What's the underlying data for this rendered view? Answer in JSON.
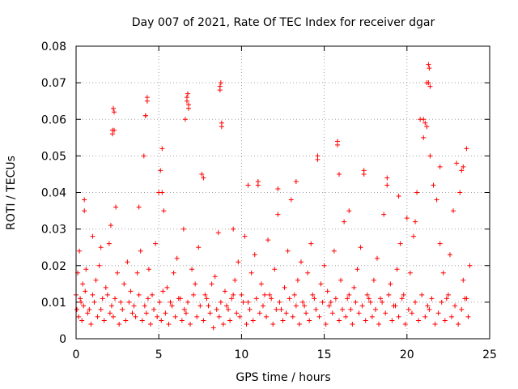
{
  "chart_data": {
    "type": "scatter",
    "title": "Day 007 of 2021, Rate Of TEC Index for receiver dgar",
    "xlabel": "GPS time / hours",
    "ylabel": "ROTI / TECUs",
    "xlim": [
      0,
      25
    ],
    "ylim": [
      0,
      0.08
    ],
    "x_ticks": [
      0,
      5,
      10,
      15,
      20,
      25
    ],
    "x_tick_labels": [
      "0",
      "5",
      "10",
      "15",
      "20",
      "25"
    ],
    "y_ticks": [
      0,
      0.01,
      0.02,
      0.03,
      0.04,
      0.05,
      0.06,
      0.07,
      0.08
    ],
    "y_tick_labels": [
      "0",
      "0.01",
      "0.02",
      "0.03",
      "0.04",
      "0.05",
      "0.06",
      "0.07",
      "0.08"
    ],
    "grid": true,
    "marker": "+",
    "color": "#ff0000",
    "series": [
      {
        "name": "ROTI",
        "x": [
          0.0,
          0.1,
          0.2,
          0.3,
          0.4,
          0.5,
          0.6,
          0.8,
          1.0,
          1.2,
          1.4,
          1.6,
          1.8,
          2.0,
          2.1,
          2.2,
          2.3,
          2.4,
          2.5,
          2.7,
          2.9,
          3.1,
          3.3,
          3.5,
          3.7,
          3.9,
          4.1,
          4.2,
          4.3,
          4.4,
          4.6,
          4.8,
          5.0,
          5.1,
          5.2,
          5.3,
          5.5,
          5.7,
          5.9,
          6.1,
          6.3,
          6.5,
          6.6,
          6.7,
          6.8,
          7.0,
          7.2,
          7.4,
          7.6,
          7.8,
          8.0,
          8.2,
          8.4,
          8.6,
          8.7,
          8.8,
          9.0,
          9.2,
          9.4,
          9.6,
          9.8,
          10.0,
          10.2,
          10.4,
          10.6,
          10.8,
          11.0,
          11.2,
          11.4,
          11.6,
          11.8,
          12.0,
          12.2,
          12.4,
          12.6,
          12.8,
          13.0,
          13.2,
          13.4,
          13.6,
          13.8,
          14.0,
          14.2,
          14.4,
          14.6,
          14.8,
          15.0,
          15.2,
          15.4,
          15.6,
          15.8,
          16.0,
          16.2,
          16.4,
          16.6,
          16.8,
          17.0,
          17.2,
          17.4,
          17.6,
          17.8,
          18.0,
          18.2,
          18.4,
          18.6,
          18.8,
          19.0,
          19.2,
          19.4,
          19.6,
          19.8,
          20.0,
          20.2,
          20.4,
          20.6,
          20.8,
          21.0,
          21.2,
          21.3,
          21.4,
          21.6,
          21.8,
          22.0,
          22.2,
          22.4,
          22.6,
          22.8,
          23.0,
          23.2,
          23.4,
          23.6,
          23.8,
          0.05,
          0.15,
          0.25,
          0.35,
          0.45,
          0.55,
          0.7,
          0.9,
          1.1,
          1.3,
          1.5,
          1.7,
          1.9,
          2.05,
          2.15,
          2.25,
          2.35,
          2.6,
          2.8,
          3.0,
          3.2,
          3.4,
          3.6,
          3.8,
          4.0,
          4.15,
          4.25,
          4.35,
          4.5,
          4.7,
          4.9,
          5.05,
          5.15,
          5.25,
          5.4,
          5.6,
          5.8,
          6.0,
          6.2,
          6.4,
          6.55,
          6.65,
          6.75,
          6.9,
          7.1,
          7.3,
          7.5,
          7.7,
          7.9,
          8.1,
          8.3,
          8.5,
          8.65,
          8.75,
          8.9,
          9.1,
          9.3,
          9.5,
          9.7,
          9.9,
          10.1,
          10.3,
          10.5,
          10.7,
          10.9,
          11.1,
          11.3,
          11.5,
          11.7,
          11.9,
          12.1,
          12.3,
          12.5,
          12.7,
          12.9,
          13.1,
          13.3,
          13.5,
          13.7,
          13.9,
          14.1,
          14.3,
          14.5,
          14.7,
          14.9,
          15.1,
          15.3,
          15.5,
          15.7,
          15.9,
          16.1,
          16.3,
          16.5,
          16.7,
          16.9,
          17.1,
          17.3,
          17.5,
          17.7,
          17.9,
          18.1,
          18.3,
          18.5,
          18.7,
          18.9,
          19.1,
          19.3,
          19.5,
          19.7,
          19.9,
          20.1,
          20.3,
          20.5,
          20.7,
          20.9,
          21.1,
          21.25,
          21.35,
          21.5,
          21.7,
          21.9,
          22.1,
          22.3,
          22.5,
          22.7,
          22.9,
          23.1,
          23.3,
          23.5,
          23.7,
          2.2,
          2.25,
          2.3,
          4.2,
          4.3,
          6.7,
          6.75,
          6.8,
          8.7,
          8.75,
          8.8,
          21.2,
          21.3,
          21.35,
          21.4,
          21.0,
          21.1,
          23.3,
          23.4,
          15.8,
          14.6,
          15.9,
          17.4,
          18.8,
          13.3,
          12.2,
          11.0,
          10.4,
          3.8,
          5.2,
          7.7,
          0.5,
          1.0,
          1.5,
          9.5,
          16.5,
          19.5,
          20.5,
          22.0,
          23.6
        ],
        "y": [
          0.012,
          0.018,
          0.024,
          0.01,
          0.015,
          0.035,
          0.019,
          0.008,
          0.012,
          0.016,
          0.02,
          0.011,
          0.014,
          0.026,
          0.031,
          0.057,
          0.062,
          0.036,
          0.018,
          0.01,
          0.015,
          0.021,
          0.013,
          0.009,
          0.018,
          0.024,
          0.05,
          0.061,
          0.065,
          0.019,
          0.012,
          0.026,
          0.04,
          0.046,
          0.052,
          0.035,
          0.014,
          0.01,
          0.018,
          0.022,
          0.011,
          0.03,
          0.06,
          0.066,
          0.064,
          0.019,
          0.015,
          0.025,
          0.045,
          0.012,
          0.009,
          0.015,
          0.017,
          0.029,
          0.068,
          0.059,
          0.013,
          0.008,
          0.011,
          0.016,
          0.021,
          0.012,
          0.028,
          0.01,
          0.018,
          0.023,
          0.042,
          0.015,
          0.012,
          0.027,
          0.011,
          0.019,
          0.034,
          0.008,
          0.014,
          0.024,
          0.038,
          0.012,
          0.016,
          0.021,
          0.009,
          0.018,
          0.026,
          0.011,
          0.049,
          0.015,
          0.02,
          0.013,
          0.01,
          0.024,
          0.053,
          0.016,
          0.032,
          0.011,
          0.008,
          0.014,
          0.019,
          0.025,
          0.045,
          0.012,
          0.01,
          0.016,
          0.022,
          0.011,
          0.034,
          0.042,
          0.015,
          0.009,
          0.019,
          0.026,
          0.012,
          0.033,
          0.018,
          0.028,
          0.04,
          0.06,
          0.055,
          0.07,
          0.075,
          0.05,
          0.042,
          0.038,
          0.026,
          0.018,
          0.011,
          0.023,
          0.035,
          0.048,
          0.04,
          0.016,
          0.011,
          0.02,
          0.008,
          0.006,
          0.011,
          0.005,
          0.009,
          0.013,
          0.007,
          0.004,
          0.01,
          0.006,
          0.008,
          0.005,
          0.012,
          0.007,
          0.009,
          0.006,
          0.011,
          0.004,
          0.008,
          0.005,
          0.01,
          0.007,
          0.006,
          0.012,
          0.005,
          0.009,
          0.007,
          0.011,
          0.004,
          0.008,
          0.006,
          0.01,
          0.005,
          0.013,
          0.007,
          0.004,
          0.009,
          0.006,
          0.011,
          0.005,
          0.008,
          0.007,
          0.01,
          0.004,
          0.012,
          0.006,
          0.009,
          0.005,
          0.011,
          0.007,
          0.003,
          0.008,
          0.006,
          0.01,
          0.004,
          0.009,
          0.005,
          0.012,
          0.007,
          0.006,
          0.01,
          0.004,
          0.008,
          0.005,
          0.011,
          0.007,
          0.009,
          0.006,
          0.012,
          0.004,
          0.008,
          0.01,
          0.005,
          0.007,
          0.011,
          0.006,
          0.009,
          0.004,
          0.01,
          0.007,
          0.005,
          0.012,
          0.008,
          0.006,
          0.01,
          0.004,
          0.009,
          0.007,
          0.011,
          0.005,
          0.008,
          0.006,
          0.012,
          0.004,
          0.01,
          0.007,
          0.009,
          0.005,
          0.011,
          0.006,
          0.008,
          0.004,
          0.01,
          0.007,
          0.012,
          0.005,
          0.009,
          0.006,
          0.011,
          0.004,
          0.008,
          0.007,
          0.01,
          0.005,
          0.012,
          0.006,
          0.009,
          0.008,
          0.011,
          0.004,
          0.007,
          0.01,
          0.005,
          0.012,
          0.006,
          0.009,
          0.004,
          0.008,
          0.011,
          0.006,
          0.056,
          0.063,
          0.057,
          0.061,
          0.066,
          0.065,
          0.067,
          0.063,
          0.069,
          0.07,
          0.058,
          0.058,
          0.07,
          0.074,
          0.069,
          0.06,
          0.059,
          0.046,
          0.047,
          0.054,
          0.05,
          0.045,
          0.046,
          0.044,
          0.043,
          0.041,
          0.043,
          0.042,
          0.036,
          0.04,
          0.044,
          0.038,
          0.028,
          0.025,
          0.03,
          0.035,
          0.039,
          0.032,
          0.047,
          0.052
        ]
      }
    ]
  }
}
